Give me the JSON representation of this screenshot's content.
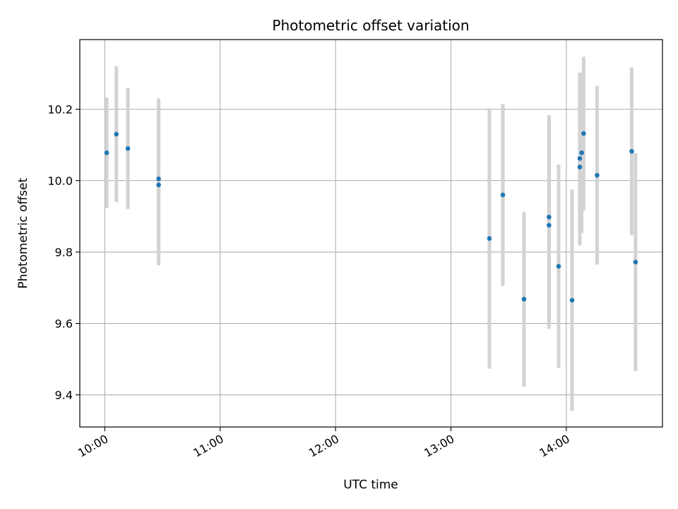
{
  "chart_data": {
    "type": "scatter",
    "title": "Photometric offset variation",
    "xlabel": "UTC time",
    "ylabel": "Photometric offset",
    "x_axis": "time",
    "xlim": [
      "09:47",
      "14:50"
    ],
    "ylim": [
      9.31,
      10.395
    ],
    "x_ticks": [
      "10:00",
      "11:00",
      "12:00",
      "13:00",
      "14:00"
    ],
    "y_ticks": [
      9.4,
      9.6,
      9.8,
      10.0,
      10.2
    ],
    "grid": true,
    "colors": {
      "point": "#1f77b4",
      "errorbar": "#d3d3d3",
      "grid": "#b0b0b0"
    },
    "points": [
      {
        "x": "10:01",
        "y": 10.078,
        "yerr": 0.155
      },
      {
        "x": "10:06",
        "y": 10.13,
        "yerr": 0.19
      },
      {
        "x": "10:12",
        "y": 10.09,
        "yerr": 0.17
      },
      {
        "x": "10:28",
        "y": 10.005,
        "yerr": 0.225
      },
      {
        "x": "10:28",
        "y": 9.988,
        "yerr": 0.225
      },
      {
        "x": "13:20",
        "y": 9.838,
        "yerr": 0.365
      },
      {
        "x": "13:27",
        "y": 9.96,
        "yerr": 0.255
      },
      {
        "x": "13:38",
        "y": 9.668,
        "yerr": 0.245
      },
      {
        "x": "13:51",
        "y": 9.898,
        "yerr": 0.285
      },
      {
        "x": "13:51",
        "y": 9.875,
        "yerr": 0.29
      },
      {
        "x": "13:56",
        "y": 9.76,
        "yerr": 0.285
      },
      {
        "x": "14:03",
        "y": 9.665,
        "yerr": 0.31
      },
      {
        "x": "14:07",
        "y": 10.038,
        "yerr": 0.22
      },
      {
        "x": "14:07",
        "y": 10.062,
        "yerr": 0.24
      },
      {
        "x": "14:08",
        "y": 10.078,
        "yerr": 0.225
      },
      {
        "x": "14:09",
        "y": 10.132,
        "yerr": 0.215
      },
      {
        "x": "14:16",
        "y": 10.015,
        "yerr": 0.25
      },
      {
        "x": "14:34",
        "y": 10.082,
        "yerr": 0.235
      },
      {
        "x": "14:36",
        "y": 9.772,
        "yerr": 0.305
      }
    ]
  }
}
